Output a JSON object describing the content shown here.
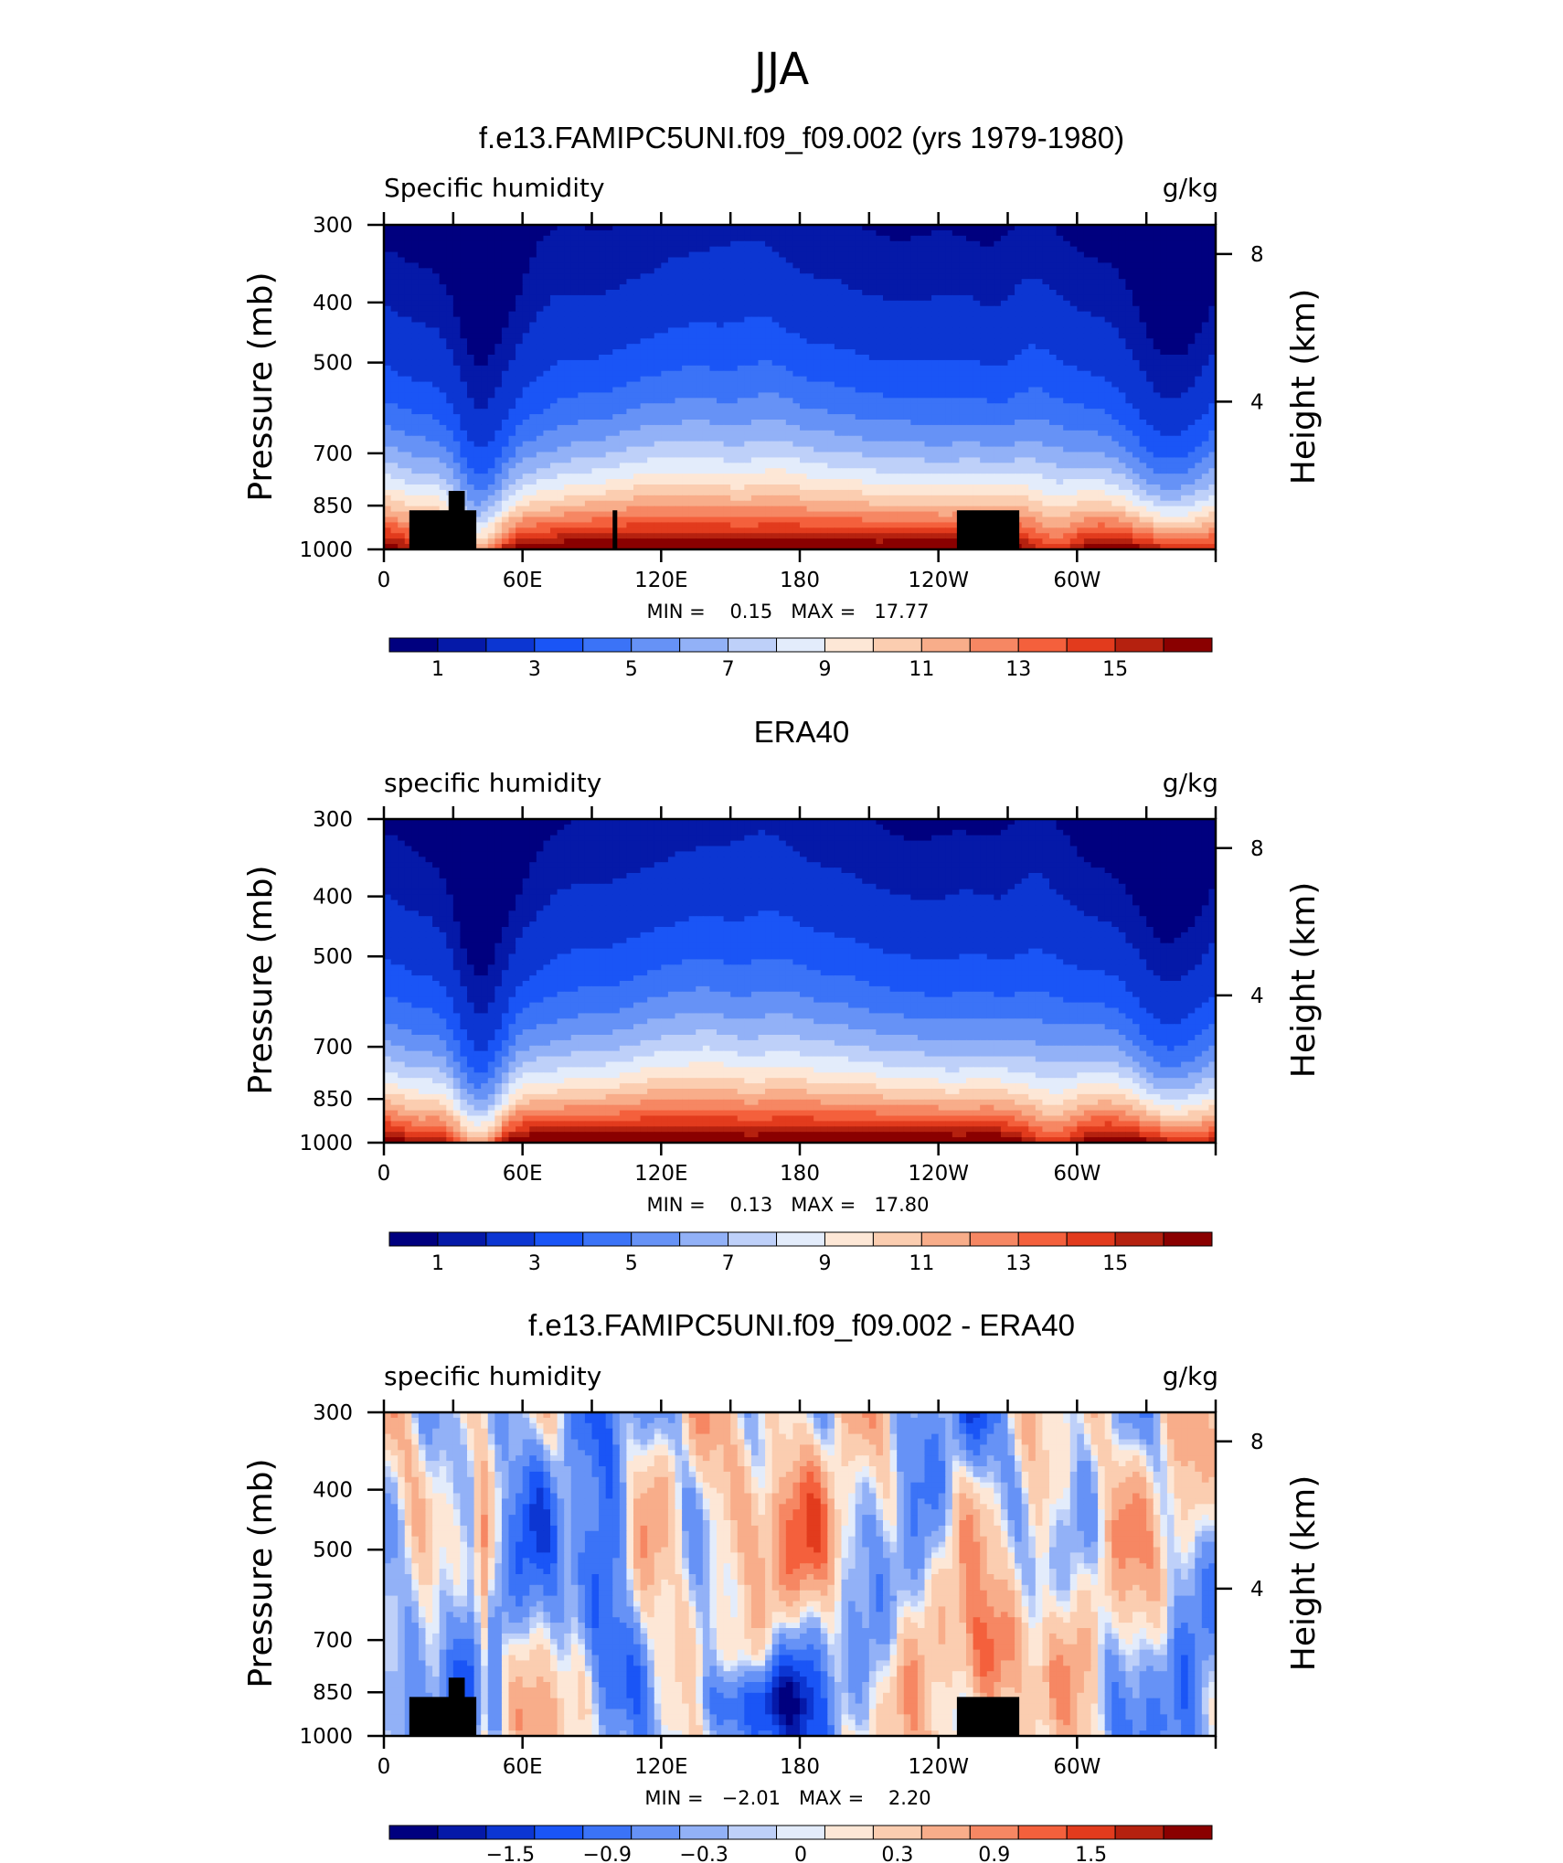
{
  "figure": {
    "title": "JJA"
  },
  "colors": {
    "humidity_scale": [
      "#00007f",
      "#0519a8",
      "#0c36d2",
      "#1a55f6",
      "#3b73f7",
      "#6692f6",
      "#92b1f7",
      "#bed0f9",
      "#e3ecfb",
      "#fde7d6",
      "#fbcdb0",
      "#f8ad8a",
      "#f68763",
      "#f4603c",
      "#e23b1d",
      "#b5210f",
      "#8a0000"
    ],
    "diff_scale": [
      "#00007f",
      "#0519a8",
      "#0c36d2",
      "#1a55f6",
      "#3b73f7",
      "#6692f6",
      "#92b1f7",
      "#bed0f9",
      "#e3ecfb",
      "#fde7d6",
      "#fbcdb0",
      "#f8ad8a",
      "#f68763",
      "#f4603c",
      "#e23b1d",
      "#b5210f",
      "#8a0000"
    ],
    "land_mask": "#000000"
  },
  "chart_data": [
    {
      "type": "heatmap",
      "title": "f.e13.FAMIPC5UNI.f09_f09.002 (yrs 1979-1980)",
      "left_label": "Specific humidity",
      "right_label": "g/kg",
      "ylabel": "Pressure (mb)",
      "y2label": "Height (km)",
      "x_ticks": [
        "0",
        "60E",
        "120E",
        "180",
        "120W",
        "60W"
      ],
      "y_ticks": [
        "300",
        "400",
        "500",
        "700",
        "850",
        "1000"
      ],
      "y2_ticks": [
        "8",
        "4"
      ],
      "xlim": [
        0,
        360
      ],
      "ylim": [
        1000,
        300
      ],
      "min_max_text": "MIN =    0.15   MAX =   17.77",
      "min": 0.15,
      "max": 17.77,
      "colorbar_labels": [
        "1",
        "3",
        "5",
        "7",
        "9",
        "11",
        "13",
        "15"
      ],
      "levels": [
        0.5,
        1,
        2,
        3,
        4,
        5,
        6,
        7,
        8,
        9,
        10,
        11,
        12,
        13,
        14,
        15,
        16
      ],
      "field": "model"
    },
    {
      "type": "heatmap",
      "title": "ERA40",
      "left_label": "specific humidity",
      "right_label": "g/kg",
      "ylabel": "Pressure (mb)",
      "y2label": "Height (km)",
      "x_ticks": [
        "0",
        "60E",
        "120E",
        "180",
        "120W",
        "60W"
      ],
      "y_ticks": [
        "300",
        "400",
        "500",
        "700",
        "850",
        "1000"
      ],
      "y2_ticks": [
        "8",
        "4"
      ],
      "xlim": [
        0,
        360
      ],
      "ylim": [
        1000,
        300
      ],
      "min_max_text": "MIN =    0.13   MAX =   17.80",
      "min": 0.13,
      "max": 17.8,
      "colorbar_labels": [
        "1",
        "3",
        "5",
        "7",
        "9",
        "11",
        "13",
        "15"
      ],
      "levels": [
        0.5,
        1,
        2,
        3,
        4,
        5,
        6,
        7,
        8,
        9,
        10,
        11,
        12,
        13,
        14,
        15,
        16
      ],
      "field": "obs"
    },
    {
      "type": "heatmap",
      "title": "f.e13.FAMIPC5UNI.f09_f09.002 - ERA40",
      "left_label": "specific humidity",
      "right_label": "g/kg",
      "ylabel": "Pressure (mb)",
      "y2label": "Height (km)",
      "x_ticks": [
        "0",
        "60E",
        "120E",
        "180",
        "120W",
        "60W"
      ],
      "y_ticks": [
        "300",
        "400",
        "500",
        "700",
        "850",
        "1000"
      ],
      "y2_ticks": [
        "8",
        "4"
      ],
      "xlim": [
        0,
        360
      ],
      "ylim": [
        1000,
        300
      ],
      "min_max_text": "MIN =   −2.01   MAX =    2.20",
      "min": -2.01,
      "max": 2.2,
      "colorbar_labels": [
        "−1.5",
        "−0.9",
        "−0.3",
        "0",
        "0.3",
        "0.9",
        "1.5"
      ],
      "levels": [
        -1.8,
        -1.5,
        -1.2,
        -0.9,
        -0.6,
        -0.3,
        -0.1,
        0,
        0.1,
        0.3,
        0.6,
        0.9,
        1.2,
        1.5,
        1.8,
        2.1
      ],
      "field": "diff"
    }
  ]
}
